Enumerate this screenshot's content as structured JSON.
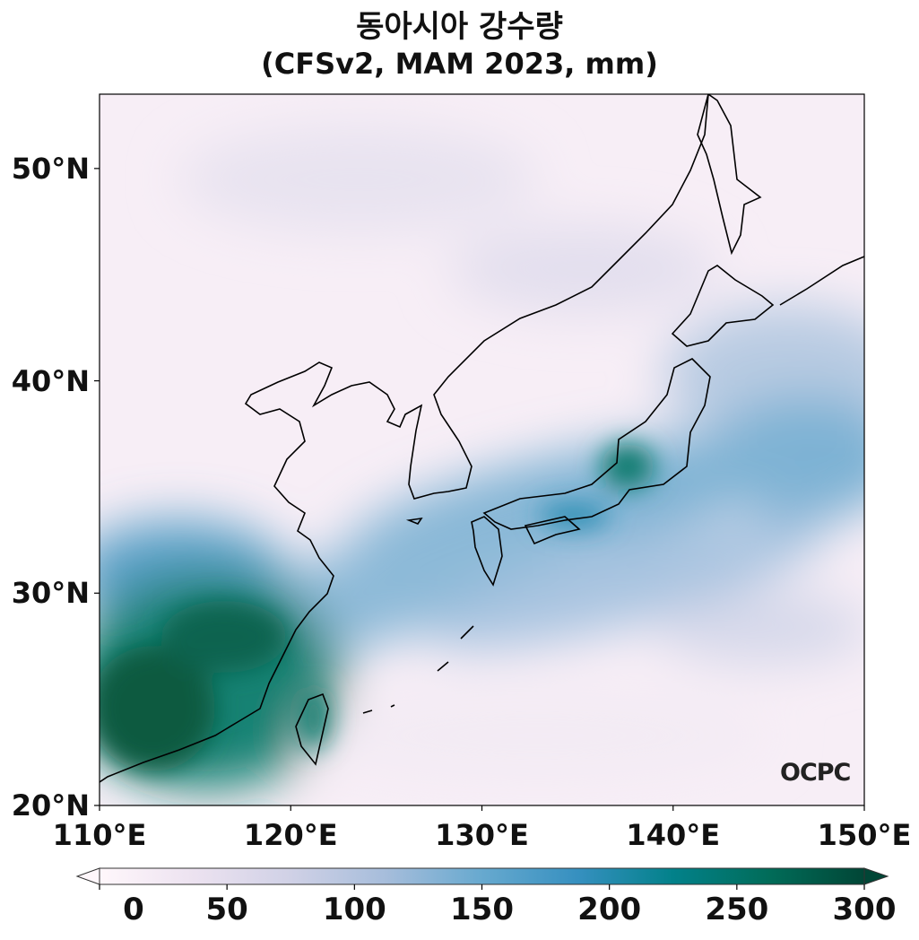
{
  "title": {
    "line1": "동아시아 강수량",
    "line2": "(CFSv2, MAM 2023, mm)"
  },
  "map": {
    "extent": {
      "lon": [
        110,
        150
      ],
      "lat": [
        20,
        53.5
      ]
    },
    "y_ticks": [
      {
        "lat": 50,
        "label": "50°N"
      },
      {
        "lat": 40,
        "label": "40°N"
      },
      {
        "lat": 30,
        "label": "30°N"
      },
      {
        "lat": 20,
        "label": "20°N"
      }
    ],
    "x_ticks": [
      {
        "lon": 110,
        "label": "110°E"
      },
      {
        "lon": 120,
        "label": "120°E"
      },
      {
        "lon": 130,
        "label": "130°E"
      },
      {
        "lon": 140,
        "label": "140°E"
      },
      {
        "lon": 150,
        "label": "150°E"
      }
    ],
    "variable": "precipitation (mm)",
    "logo": "OCPC"
  },
  "colorbar": {
    "min": 0,
    "max": 300,
    "extend": "both",
    "ticks": [
      "0",
      "50",
      "100",
      "150",
      "200",
      "250",
      "300"
    ],
    "colors": [
      "#fff7fb",
      "#ece2f0",
      "#d0d1e6",
      "#a6bddb",
      "#67a9cf",
      "#3690c0",
      "#02818a",
      "#016c59",
      "#014636"
    ]
  }
}
